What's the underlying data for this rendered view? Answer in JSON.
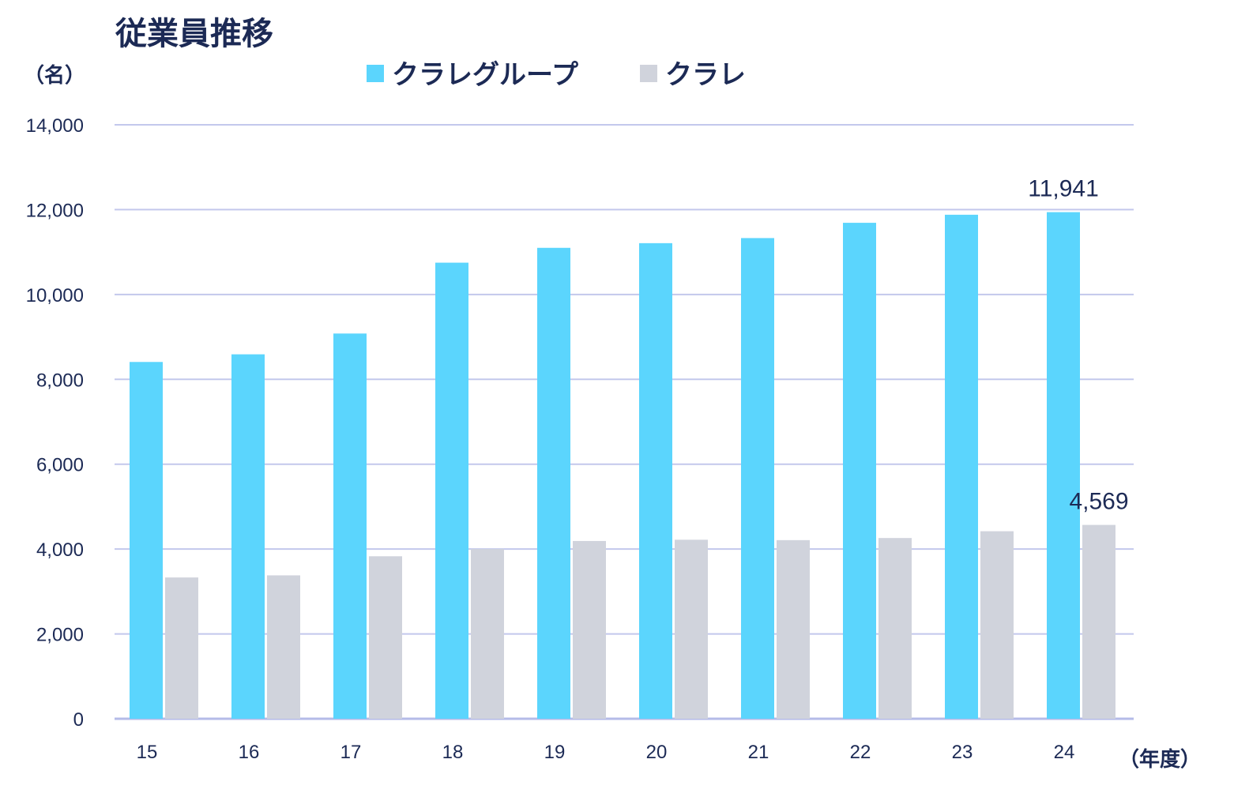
{
  "chart_data": {
    "type": "bar",
    "title": "従業員推移",
    "ylabel": "（名）",
    "xlabel": "（年度）",
    "categories": [
      "15",
      "16",
      "17",
      "18",
      "19",
      "20",
      "21",
      "22",
      "23",
      "24"
    ],
    "series": [
      {
        "name": "クラレグループ",
        "color": "#5bd5fd",
        "values": [
          8410,
          8590,
          9080,
          10750,
          11100,
          11210,
          11330,
          11690,
          11880,
          11941
        ]
      },
      {
        "name": "クラレ",
        "color": "#d0d3dc",
        "values": [
          3330,
          3380,
          3830,
          4000,
          4190,
          4220,
          4210,
          4260,
          4420,
          4569
        ]
      }
    ],
    "ylim": [
      0,
      14000
    ],
    "yticks": [
      "0",
      "2,000",
      "4,000",
      "6,000",
      "8,000",
      "10,000",
      "12,000",
      "14,000"
    ],
    "data_labels": [
      {
        "series": 0,
        "index": 9,
        "text": "11,941"
      },
      {
        "series": 1,
        "index": 9,
        "text": "4,569"
      }
    ],
    "grid": true,
    "legend": "top"
  }
}
